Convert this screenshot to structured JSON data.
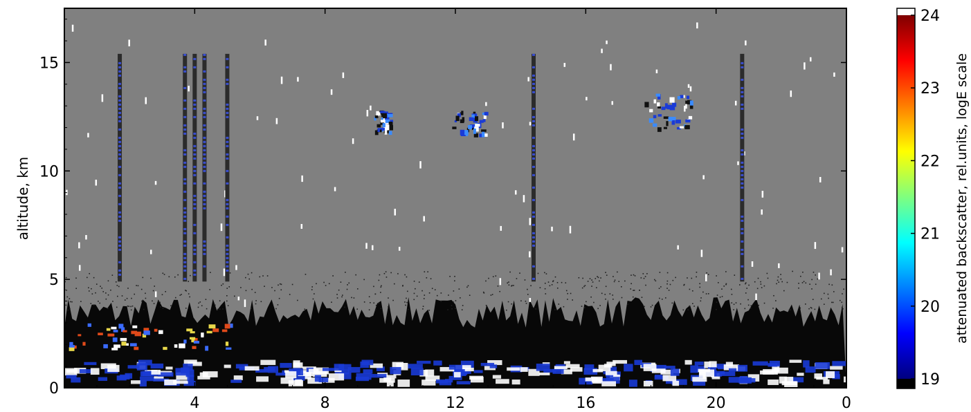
{
  "chart_data": [
    {
      "type": "heatmap",
      "title": "",
      "xlabel": "",
      "ylabel": "altitude, km",
      "x_ticks": [
        "4",
        "8",
        "12",
        "16",
        "20",
        "0"
      ],
      "x_tick_hours": [
        4,
        8,
        12,
        16,
        20,
        24
      ],
      "xlim": [
        0,
        24
      ],
      "y_ticks": [
        0,
        5,
        10,
        15
      ],
      "ylim": [
        0,
        17.5
      ],
      "grid": false,
      "background_color": "#808080",
      "features": {
        "vertical_profile_columns_hours": [
          1.7,
          3.7,
          4.0,
          4.3,
          5.0,
          14.4,
          20.8
        ],
        "vertical_profile_altitude_km": [
          4.9,
          15.4
        ],
        "cirrus_clouds": [
          {
            "x_hours": [
              9.5,
              10.0
            ],
            "alt_km": [
              11.8,
              12.8
            ]
          },
          {
            "x_hours": [
              11.9,
              12.9
            ],
            "alt_km": [
              11.7,
              12.8
            ]
          },
          {
            "x_hours": [
              17.8,
              19.2
            ],
            "alt_km": [
              12.0,
              13.6
            ]
          }
        ],
        "boundary_layer_top_km": 3.2,
        "low_cloud_layer_km": [
          0.3,
          1.3
        ],
        "upper_low_cloud_km": [
          1.8,
          3.0
        ]
      }
    },
    {
      "type": "colorbar",
      "label": "attenuated backscatter, rel.units, logE scale",
      "ticks": [
        19,
        20,
        21,
        22,
        23,
        24
      ],
      "range": [
        19,
        24
      ],
      "colormap": [
        "#00007f",
        "#0000ff",
        "#007fff",
        "#00ffff",
        "#7fff7f",
        "#ffff00",
        "#ff7f00",
        "#ff0000",
        "#7f0000"
      ],
      "under_color": "#000000",
      "over_color": "#ffffff"
    }
  ]
}
